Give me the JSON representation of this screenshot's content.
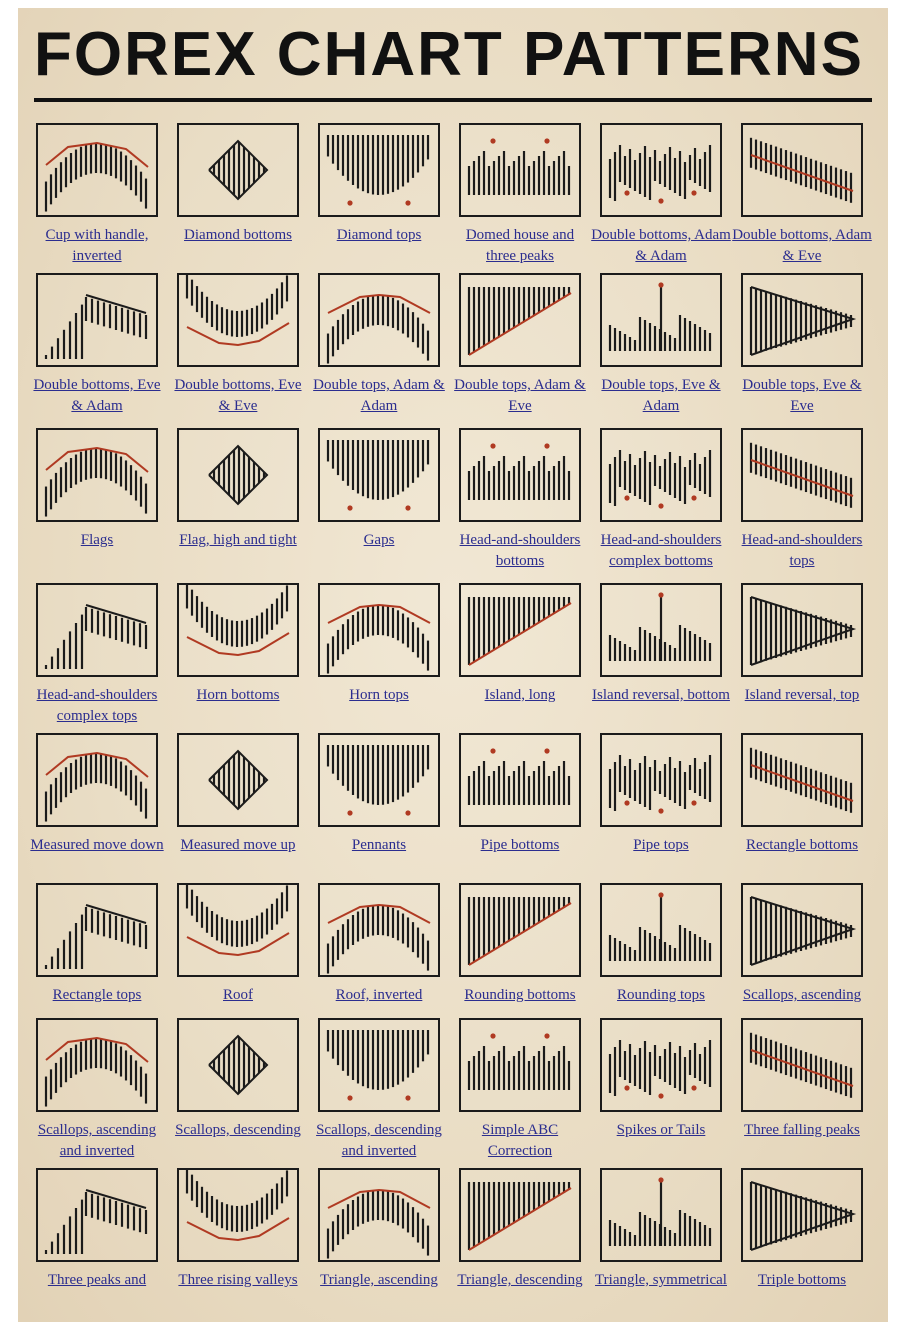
{
  "title": "FOREX CHART PATTERNS",
  "patterns": [
    {
      "label": "Cup with handle, inverted",
      "icon": "cup-with-handle-inverted-icon"
    },
    {
      "label": "Diamond bottoms",
      "icon": "diamond-bottoms-icon"
    },
    {
      "label": "Diamond tops",
      "icon": "diamond-tops-icon"
    },
    {
      "label": "Domed house and three peaks",
      "icon": "domed-house-icon"
    },
    {
      "label": "Double bottoms, Adam & Adam",
      "icon": "double-bottoms-adam-adam-icon"
    },
    {
      "label": "Double bottoms, Adam & Eve",
      "icon": "double-bottoms-adam-eve-icon"
    },
    {
      "label": "Double bottoms, Eve & Adam",
      "icon": "double-bottoms-eve-adam-icon"
    },
    {
      "label": "Double bottoms, Eve & Eve",
      "icon": "double-bottoms-eve-eve-icon"
    },
    {
      "label": "Double tops, Adam & Adam",
      "icon": "double-tops-adam-adam-icon"
    },
    {
      "label": "Double tops, Adam & Eve",
      "icon": "double-tops-adam-eve-icon"
    },
    {
      "label": "Double tops, Eve & Adam",
      "icon": "double-tops-eve-adam-icon"
    },
    {
      "label": "Double tops, Eve & Eve",
      "icon": "double-tops-eve-eve-icon"
    },
    {
      "label": "Flags",
      "icon": "flags-icon"
    },
    {
      "label": "Flag, high and tight",
      "icon": "flag-high-tight-icon"
    },
    {
      "label": "Gaps",
      "icon": "gaps-icon"
    },
    {
      "label": "Head-and-shoulders bottoms",
      "icon": "hs-bottoms-icon"
    },
    {
      "label": "Head-and-shoulders complex bottoms",
      "icon": "hs-complex-bottoms-icon"
    },
    {
      "label": "Head-and-shoulders tops",
      "icon": "hs-tops-icon"
    },
    {
      "label": "Head-and-shoulders complex tops",
      "icon": "hs-complex-tops-icon"
    },
    {
      "label": "Horn bottoms",
      "icon": "horn-bottoms-icon"
    },
    {
      "label": "Horn tops",
      "icon": "horn-tops-icon"
    },
    {
      "label": "Island, long",
      "icon": "island-long-icon"
    },
    {
      "label": "Island reversal, bottom",
      "icon": "island-reversal-bottom-icon"
    },
    {
      "label": "Island reversal, top",
      "icon": "island-reversal-top-icon"
    },
    {
      "label": "Measured move down",
      "icon": "measured-move-down-icon"
    },
    {
      "label": "Measured move up",
      "icon": "measured-move-up-icon"
    },
    {
      "label": "Pennants",
      "icon": "pennants-icon"
    },
    {
      "label": "Pipe bottoms",
      "icon": "pipe-bottoms-icon"
    },
    {
      "label": "Pipe tops",
      "icon": "pipe-tops-icon"
    },
    {
      "label": "Rectangle bottoms",
      "icon": "rectangle-bottoms-icon"
    },
    {
      "label": "Rectangle tops",
      "icon": "rectangle-tops-icon"
    },
    {
      "label": "Roof",
      "icon": "roof-icon"
    },
    {
      "label": "Roof, inverted",
      "icon": "roof-inverted-icon"
    },
    {
      "label": "Rounding bottoms",
      "icon": "rounding-bottoms-icon"
    },
    {
      "label": "Rounding tops",
      "icon": "rounding-tops-icon"
    },
    {
      "label": "Scallops, ascending",
      "icon": "scallops-ascending-icon"
    },
    {
      "label": "Scallops, ascending and inverted",
      "icon": "scallops-ascending-inverted-icon"
    },
    {
      "label": "Scallops, descending",
      "icon": "scallops-descending-icon"
    },
    {
      "label": "Scallops, descending and inverted",
      "icon": "scallops-descending-inverted-icon"
    },
    {
      "label": "Simple ABC Correction",
      "icon": "simple-abc-correction-icon"
    },
    {
      "label": "Spikes or Tails",
      "icon": "spikes-tails-icon"
    },
    {
      "label": "Three falling peaks",
      "icon": "three-falling-peaks-icon"
    },
    {
      "label": "Three peaks and",
      "icon": "three-peaks-icon"
    },
    {
      "label": "Three rising valleys",
      "icon": "three-rising-valleys-icon"
    },
    {
      "label": "Triangle, ascending",
      "icon": "triangle-ascending-icon"
    },
    {
      "label": "Triangle, descending",
      "icon": "triangle-descending-icon"
    },
    {
      "label": "Triangle, symmetrical",
      "icon": "triangle-symmetrical-icon"
    },
    {
      "label": "Triple bottoms",
      "icon": "triple-bottoms-icon"
    }
  ],
  "colors": {
    "ink": "#1b1b1b",
    "accent": "#b03a22",
    "link": "#2b2d8f",
    "paper": "#ece0c8"
  }
}
